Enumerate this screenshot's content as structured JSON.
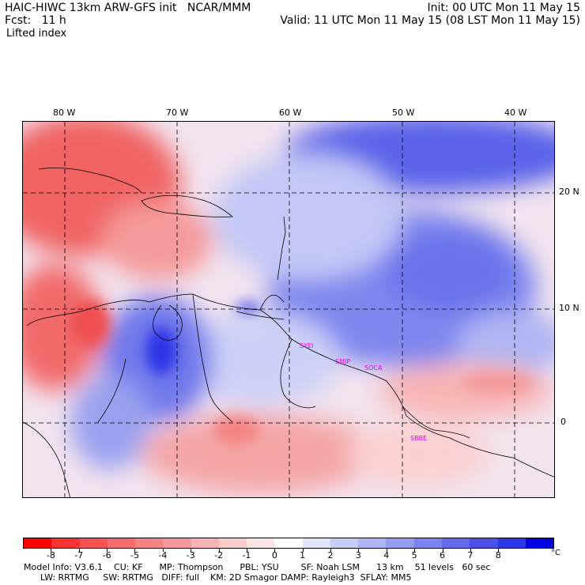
{
  "header": {
    "title_left": "HAIC-HIWC 13km ARW-GFS init   NCAR/MMM",
    "fcst": "Fcst:   11 h",
    "field": "Lifted index",
    "init": "Init: 00 UTC Mon 11 May 15",
    "valid": "Valid: 11 UTC Mon 11 May 15 (08 LST Mon 11 May 15)"
  },
  "map": {
    "lon_labels": [
      "80 W",
      "70 W",
      "60 W",
      "50 W",
      "40 W"
    ],
    "lat_labels": [
      "20 N",
      "10 N",
      "0"
    ],
    "stations": [
      "SYEI",
      "SMJP",
      "SOCA",
      "SBBE"
    ]
  },
  "colorbar": {
    "colors": [
      "#ff0000",
      "#fd3434",
      "#f95252",
      "#f56c6c",
      "#f48484",
      "#f59a9a",
      "#f8b3b3",
      "#fbcccc",
      "#fde5e5",
      "#ffffff",
      "#e3e6fb",
      "#c8cdf7",
      "#aeb4f4",
      "#959cf0",
      "#7c84ee",
      "#636aeb",
      "#4a51e9",
      "#2f36e7",
      "#0000e0"
    ],
    "tick_labels": [
      "-8",
      "-7",
      "-6",
      "-5",
      "-4",
      "-3",
      "-2",
      "-1",
      "0",
      "1",
      "2",
      "3",
      "4",
      "5",
      "6",
      "7",
      "8"
    ],
    "unit": "°C"
  },
  "footer": {
    "line1": "Model Info: V3.6.1    CU: KF      MP: Thompson      PBL: YSU        SF: Noah LSM      13 km    51 levels   60 sec",
    "line2": "      LW: RRTMG     SW: RRTMG   DIFF: full    KM: 2D Smagor DAMP: Rayleigh3  SFLAY: MM5"
  }
}
